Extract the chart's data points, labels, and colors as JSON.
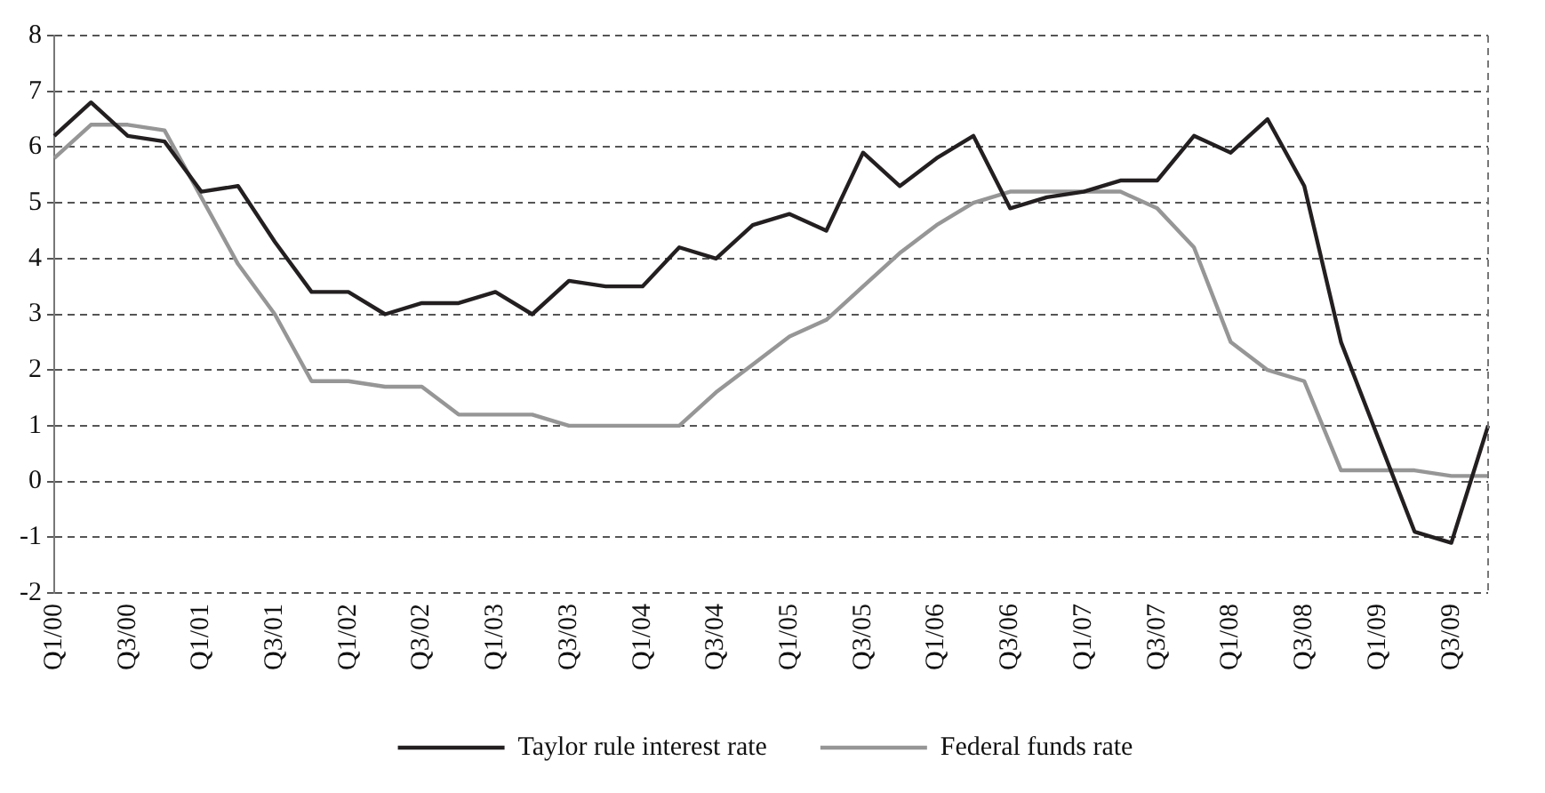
{
  "chart_data": {
    "type": "line",
    "categories": [
      "Q1/00",
      null,
      "Q3/00",
      null,
      "Q1/01",
      null,
      "Q3/01",
      null,
      "Q1/02",
      null,
      "Q3/02",
      null,
      "Q1/03",
      null,
      "Q3/03",
      null,
      "Q1/04",
      null,
      "Q3/04",
      null,
      "Q1/05",
      null,
      "Q3/05",
      null,
      "Q1/06",
      null,
      "Q3/06",
      null,
      "Q1/07",
      null,
      "Q3/07",
      null,
      "Q1/08",
      null,
      "Q3/08",
      null,
      "Q1/09",
      null,
      "Q3/09",
      null
    ],
    "series": [
      {
        "name": "Taylor rule interest rate",
        "color": "#231f20",
        "values": [
          6.2,
          6.8,
          6.2,
          6.1,
          5.2,
          5.3,
          4.3,
          3.4,
          3.4,
          3.0,
          3.2,
          3.2,
          3.4,
          3.0,
          3.6,
          3.5,
          3.5,
          4.2,
          4.0,
          4.6,
          4.8,
          4.5,
          5.9,
          5.3,
          5.8,
          6.2,
          4.9,
          5.1,
          5.2,
          5.4,
          5.4,
          6.2,
          5.9,
          6.5,
          5.3,
          2.5,
          0.8,
          -0.9,
          -1.1,
          1.0
        ]
      },
      {
        "name": "Federal funds rate",
        "color": "#969696",
        "values": [
          5.8,
          6.4,
          6.4,
          6.3,
          5.1,
          3.9,
          3.0,
          1.8,
          1.8,
          1.7,
          1.7,
          1.2,
          1.2,
          1.2,
          1.0,
          1.0,
          1.0,
          1.0,
          1.6,
          2.1,
          2.6,
          2.9,
          3.5,
          4.1,
          4.6,
          5.0,
          5.2,
          5.2,
          5.2,
          5.2,
          4.9,
          4.2,
          2.5,
          2.0,
          1.8,
          0.2,
          0.2,
          0.2,
          0.1,
          0.1
        ]
      }
    ],
    "ylim": [
      -2,
      8
    ],
    "yticks": [
      -2,
      -1,
      0,
      1,
      2,
      3,
      4,
      5,
      6,
      7,
      8
    ],
    "grid": "y",
    "legend": "bottom",
    "marker": "none",
    "line_style": "solid"
  }
}
